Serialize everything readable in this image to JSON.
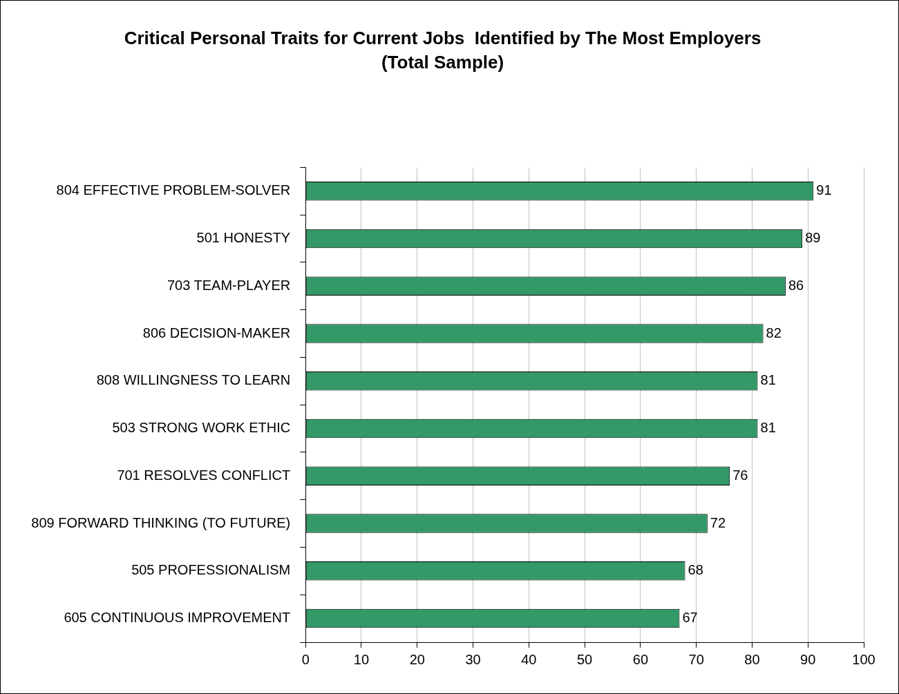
{
  "chart_data": {
    "type": "bar",
    "orientation": "horizontal",
    "title": "Critical Personal Traits for Current Jobs  Identified by The Most Employers",
    "subtitle": "(Total Sample)",
    "categories": [
      "804 EFFECTIVE PROBLEM-SOLVER",
      "501 HONESTY",
      "703 TEAM-PLAYER",
      "806 DECISION-MAKER",
      "808 WILLINGNESS TO LEARN",
      "503 STRONG WORK ETHIC",
      "701 RESOLVES CONFLICT",
      "809 FORWARD THINKING (TO FUTURE)",
      "505 PROFESSIONALISM",
      "605 CONTINUOUS IMPROVEMENT"
    ],
    "values": [
      91,
      89,
      86,
      82,
      81,
      81,
      76,
      72,
      68,
      67
    ],
    "color": "#339966",
    "xlim": [
      0,
      100
    ],
    "xticks": [
      0,
      10,
      20,
      30,
      40,
      50,
      60,
      70,
      80,
      90,
      100
    ],
    "grid": "x",
    "data_labels": true,
    "legend": false
  }
}
